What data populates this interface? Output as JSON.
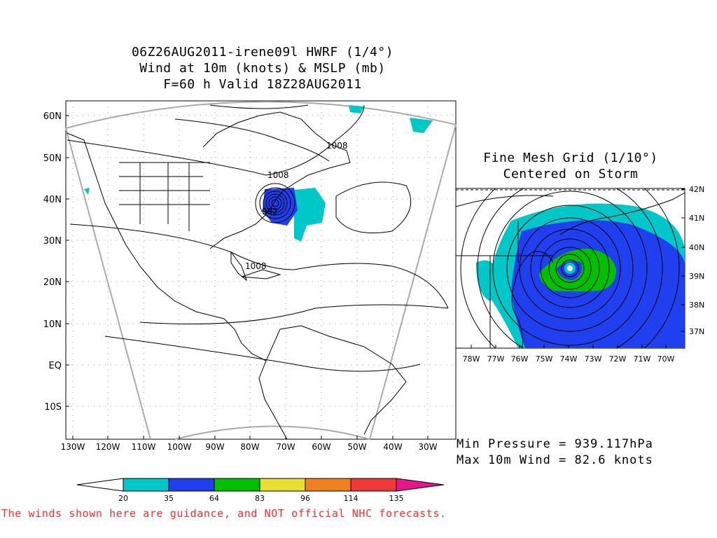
{
  "title": {
    "line1": "06Z26AUG2011-irene09l HWRF (1/4°)",
    "line2": "Wind at 10m (knots) & MSLP (mb)",
    "line3": "F=60 h Valid 18Z28AUG2011"
  },
  "inset_title": {
    "line1": "Fine Mesh Grid (1/10°)",
    "line2": "Centered on Storm"
  },
  "main_map": {
    "lat_labels": [
      "60N",
      "50N",
      "40N",
      "30N",
      "20N",
      "10N",
      "EQ",
      "10S"
    ],
    "lon_labels": [
      "130W",
      "120W",
      "110W",
      "100W",
      "90W",
      "80W",
      "70W",
      "60W",
      "50W",
      "40W",
      "30W"
    ],
    "isobar_labels": [
      "1008",
      "1008",
      "992",
      "1008"
    ]
  },
  "inset_map": {
    "lat_labels": [
      "42N",
      "41N",
      "40N",
      "39N",
      "38N",
      "37N"
    ],
    "lon_labels": [
      "78W",
      "77W",
      "76W",
      "75W",
      "74W",
      "73W",
      "72W",
      "71W",
      "70W"
    ]
  },
  "stats": {
    "min_pressure": "Min Pressure = 939.117hPa",
    "max_wind": "Max 10m Wind = 82.6 knots"
  },
  "colorbar": {
    "ticks": [
      "20",
      "35",
      "64",
      "83",
      "96",
      "114",
      "135"
    ],
    "colors": [
      "#00c8c8",
      "#2040f0",
      "#00c000",
      "#e8e030",
      "#f08020",
      "#f03838",
      "#e8148c"
    ]
  },
  "disclaimer": "The winds shown here are guidance, and NOT official NHC forecasts."
}
